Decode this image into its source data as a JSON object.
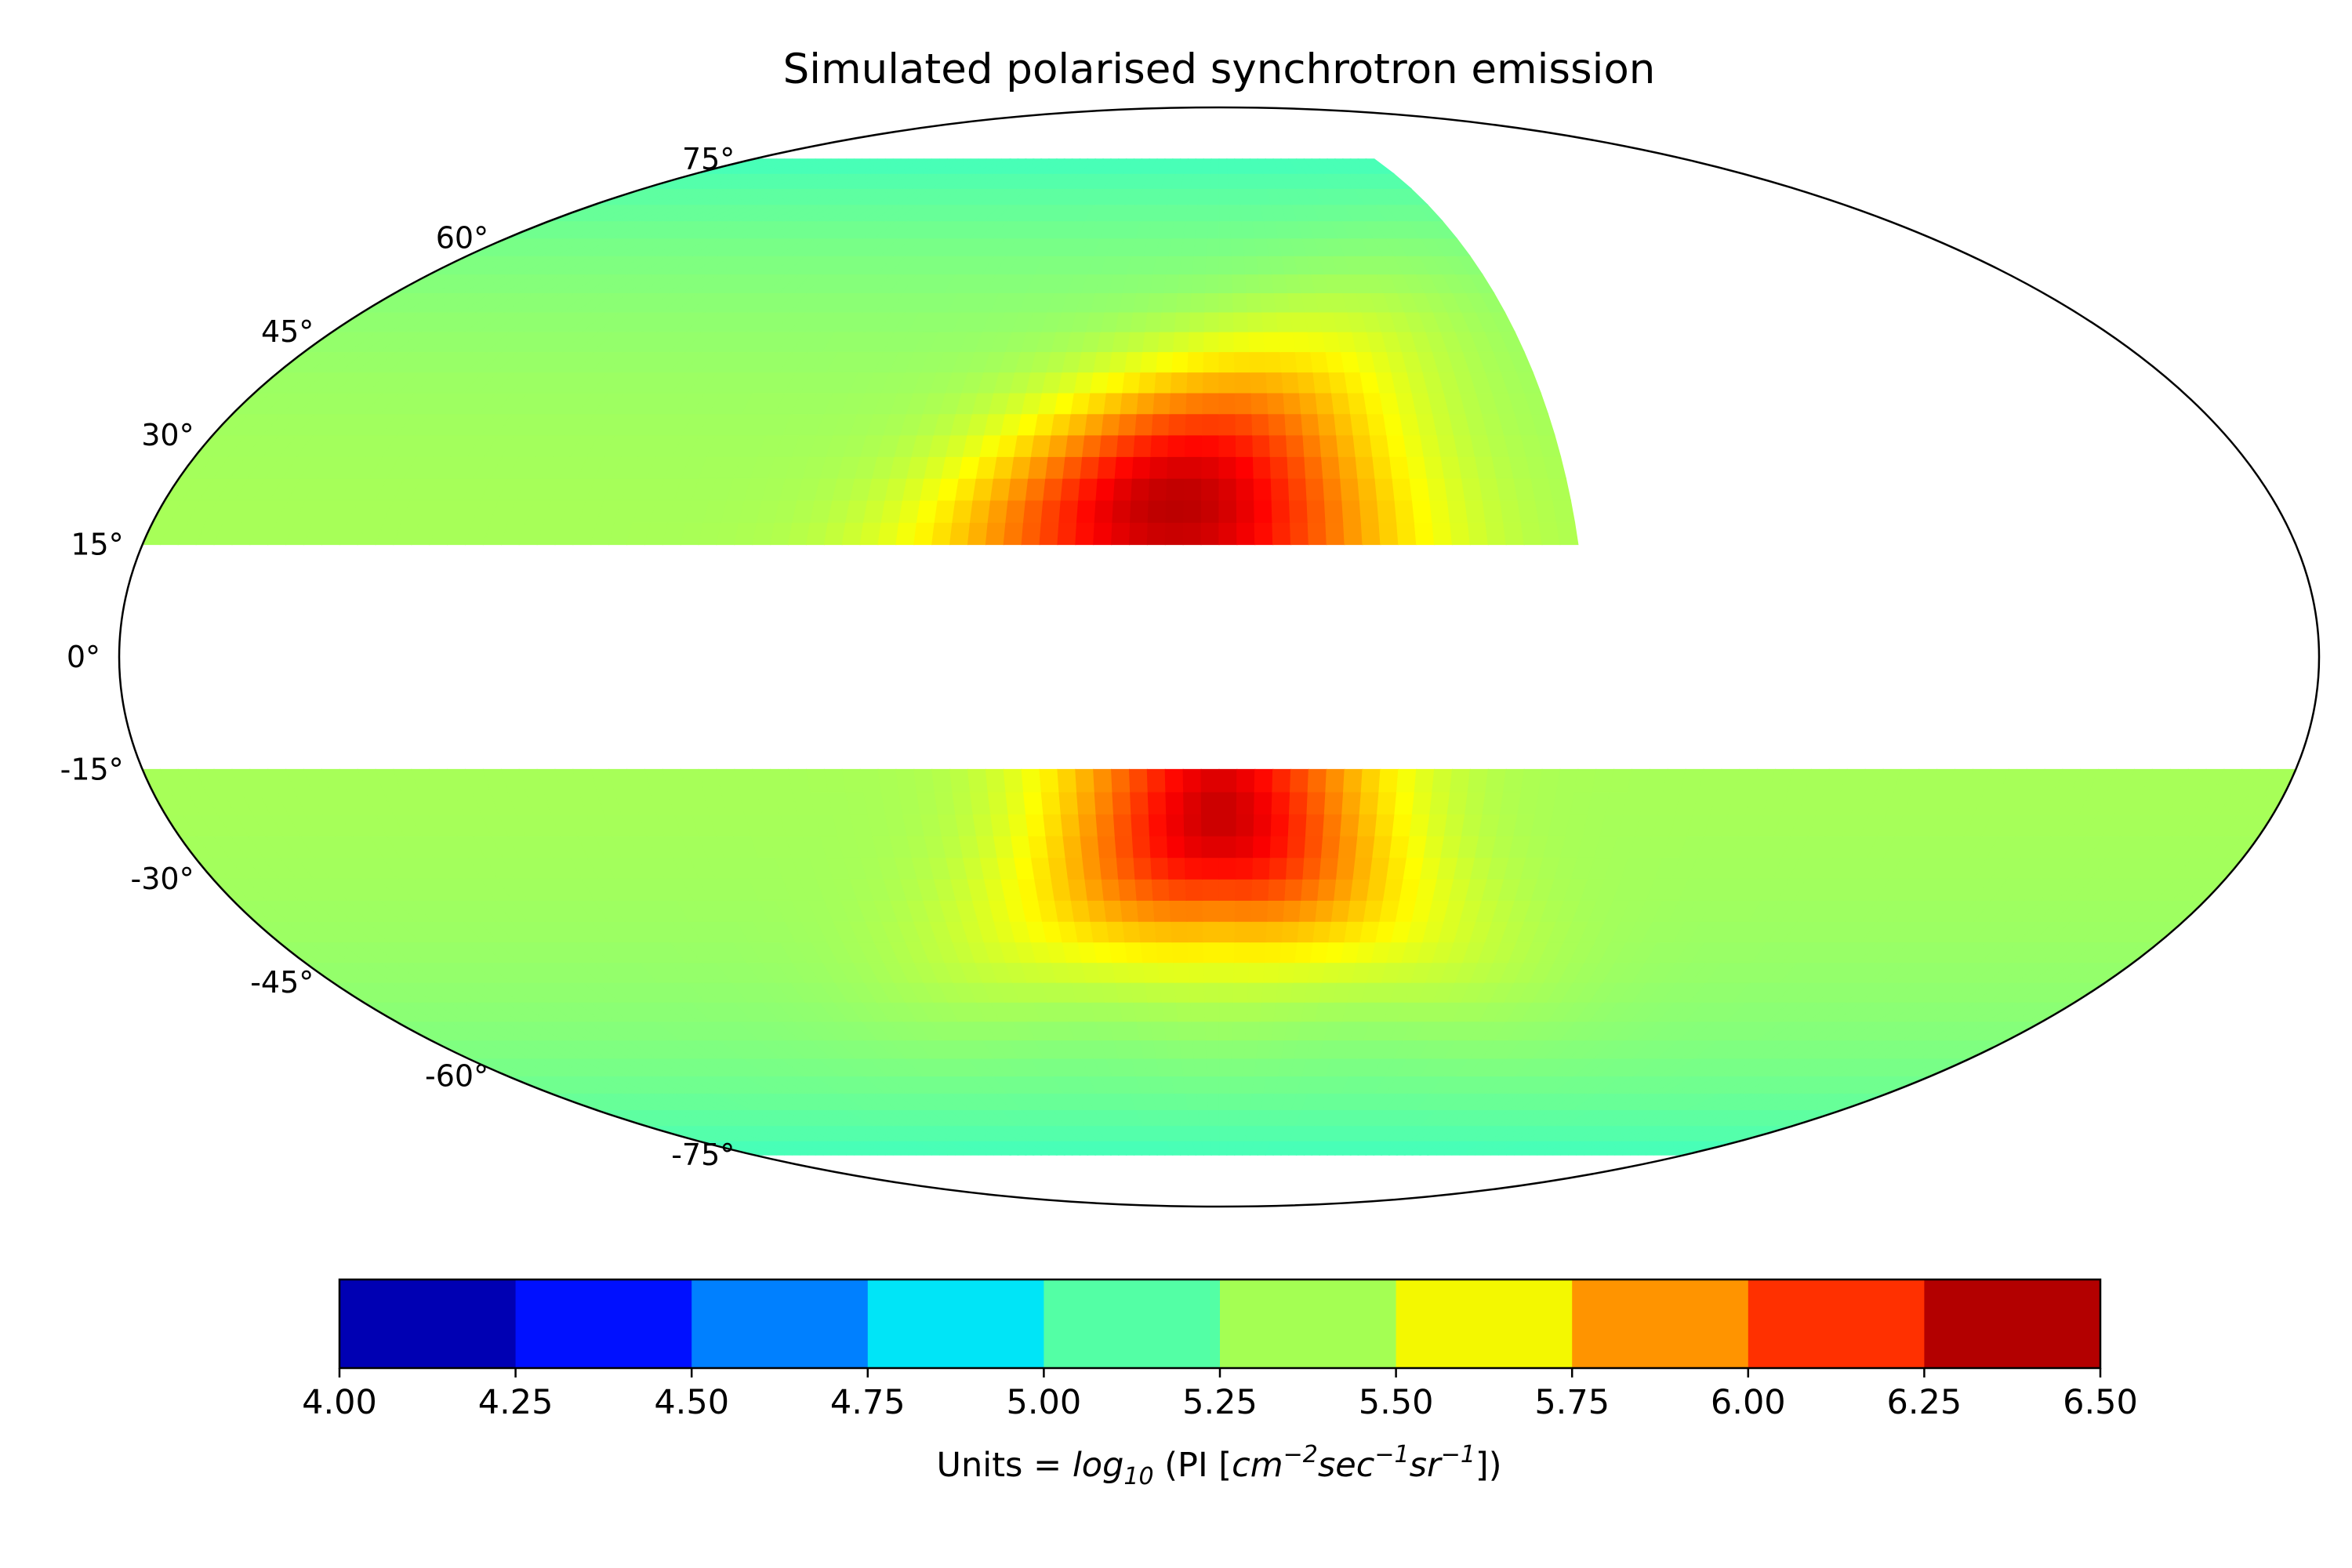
{
  "chart_data": {
    "type": "heatmap",
    "projection": "mollweide",
    "title": "Simulated polarised synchrotron emission",
    "latitude_tick_labels": [
      "75°",
      "60°",
      "45°",
      "30°",
      "15°",
      "0°",
      "-15°",
      "-30°",
      "-45°",
      "-60°",
      "-75°"
    ],
    "latitude_ticks_deg": [
      75,
      60,
      45,
      30,
      15,
      0,
      -15,
      -30,
      -45,
      -60,
      -75
    ],
    "colorbar": {
      "colormap": "jet",
      "range": [
        4.0,
        6.5
      ],
      "bin_width": 0.25,
      "tick_labels": [
        "4.00",
        "4.25",
        "4.50",
        "4.75",
        "5.00",
        "5.25",
        "5.50",
        "5.75",
        "6.00",
        "6.25",
        "6.50"
      ],
      "bin_colors": [
        "#0000b3",
        "#0010ff",
        "#0080ff",
        "#00e5f7",
        "#53ffa5",
        "#a4ff53",
        "#f4f800",
        "#ff9400",
        "#ff3000",
        "#b30000"
      ],
      "label": {
        "prefix": "Units = ",
        "log": "log",
        "log_sub": "10",
        "middle": " (PI [",
        "u1": "cm",
        "u1_exp": "−2",
        "u2": "sec",
        "u2_exp": "−1",
        "u3": "sr",
        "u3_exp": "−1",
        "suffix": "])"
      }
    },
    "masked_regions": [
      "|b| < 15°",
      "north: 60° < l < 180°"
    ],
    "data_regions": {
      "north_lat_range_deg": [
        15,
        75
      ],
      "south_lat_range_deg": [
        -75,
        -15
      ],
      "lon_range_deg": [
        -60,
        60
      ]
    },
    "peak_values": {
      "north_peak": {
        "value": 6.15,
        "lon_deg": -2,
        "lat_deg": 16
      },
      "south_peak": {
        "value": 6.1,
        "lon_deg": 0,
        "lat_deg": -16
      },
      "background_level": 5.35
    }
  }
}
